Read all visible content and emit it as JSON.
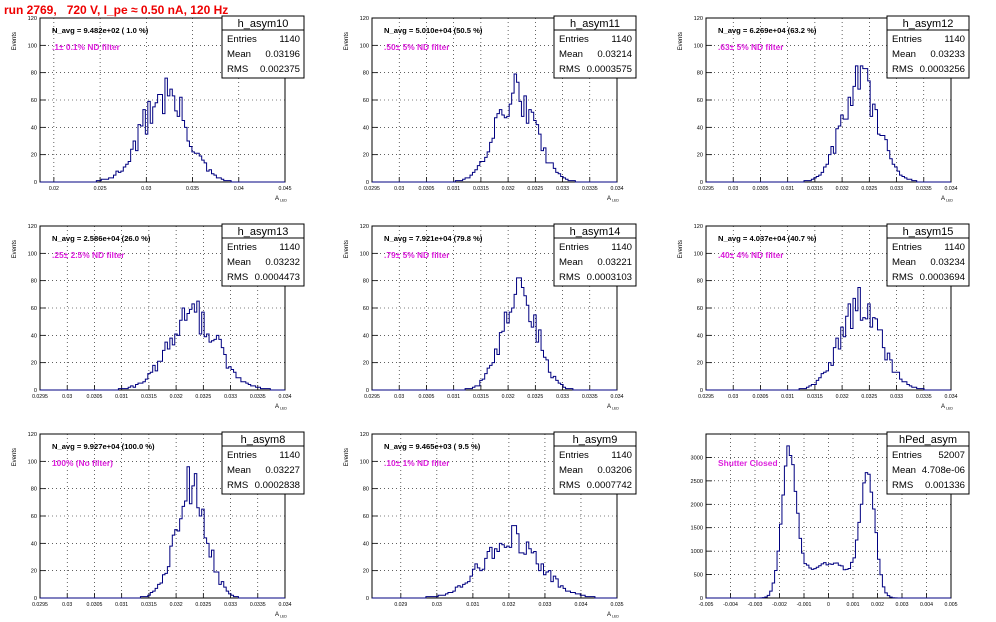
{
  "page": {
    "title": "run 2769,   720 V, I_pe ≈ 0.50 nA, 120 Hz"
  },
  "chart_data": [
    {
      "type": "bar",
      "hist_name": "h_asym10",
      "stats": {
        "entries": "1140",
        "mean": "0.03196",
        "rms": "0.002375"
      },
      "navg_label": "N_avg = 9.482e+02 ( 1.0 %)",
      "filter_label": ".1± 0.1% ND filter",
      "xlabel": "A_LED",
      "ylabel": "Events",
      "xlim": [
        0.0185,
        0.045
      ],
      "ylim": [
        0,
        120
      ],
      "xticks": [
        "0.02",
        "0.025",
        "0.03",
        "0.035",
        "0.04",
        "0.045"
      ],
      "yticks": [
        "0",
        "20",
        "40",
        "60",
        "80",
        "100",
        "120"
      ],
      "hist_mean": 0.03196,
      "hist_sigma": 0.002375,
      "hist_peak": 65,
      "hist_noise": 0.28
    },
    {
      "type": "bar",
      "hist_name": "h_asym11",
      "stats": {
        "entries": "1140",
        "mean": "0.03214",
        "rms": "0.0003575"
      },
      "navg_label": "N_avg = 5.010e+04 (50.5 %)",
      "filter_label": ".50± 5% ND filter",
      "xlabel": "A_LED",
      "ylabel": "Events",
      "xlim": [
        0.0295,
        0.034
      ],
      "ylim": [
        0,
        120
      ],
      "xticks": [
        "0.0295",
        "0.03",
        "0.0305",
        "0.031",
        "0.0315",
        "0.032",
        "0.0325",
        "0.033",
        "0.0335",
        "0.034"
      ],
      "yticks": [
        "0",
        "20",
        "40",
        "60",
        "80",
        "100",
        "120"
      ],
      "hist_mean": 0.03214,
      "hist_sigma": 0.0003575,
      "hist_peak": 65,
      "hist_noise": 0.22
    },
    {
      "type": "bar",
      "hist_name": "h_asym12",
      "stats": {
        "entries": "1140",
        "mean": "0.03233",
        "rms": "0.0003256"
      },
      "navg_label": "N_avg = 6.269e+04 (63.2 %)",
      "filter_label": ".63± 5% ND filter",
      "xlabel": "A_LED",
      "ylabel": "Events",
      "xlim": [
        0.0295,
        0.034
      ],
      "ylim": [
        0,
        120
      ],
      "xticks": [
        "0.0295",
        "0.03",
        "0.0305",
        "0.031",
        "0.0315",
        "0.032",
        "0.0325",
        "0.033",
        "0.0335",
        "0.034"
      ],
      "yticks": [
        "0",
        "20",
        "40",
        "60",
        "80",
        "100",
        "120"
      ],
      "hist_mean": 0.03233,
      "hist_sigma": 0.0003256,
      "hist_peak": 75,
      "hist_noise": 0.22
    },
    {
      "type": "bar",
      "hist_name": "h_asym13",
      "stats": {
        "entries": "1140",
        "mean": "0.03232",
        "rms": "0.0004473"
      },
      "navg_label": "N_avg = 2.586e+04 (26.0 %)",
      "filter_label": ".25± 2.5% ND filter",
      "xlabel": "A_LED",
      "ylabel": "Events",
      "xlim": [
        0.0295,
        0.034
      ],
      "ylim": [
        0,
        120
      ],
      "xticks": [
        "0.0295",
        "0.03",
        "0.0305",
        "0.031",
        "0.0315",
        "0.032",
        "0.0325",
        "0.033",
        "0.0335",
        "0.034"
      ],
      "yticks": [
        "0",
        "20",
        "40",
        "60",
        "80",
        "100",
        "120"
      ],
      "hist_mean": 0.03232,
      "hist_sigma": 0.0004473,
      "hist_peak": 55,
      "hist_noise": 0.22
    },
    {
      "type": "bar",
      "hist_name": "h_asym14",
      "stats": {
        "entries": "1140",
        "mean": "0.03221",
        "rms": "0.0003103"
      },
      "navg_label": "N_avg = 7.921e+04 (79.8 %)",
      "filter_label": ".79± 5% ND filter",
      "xlabel": "A_LED",
      "ylabel": "Events",
      "xlim": [
        0.0295,
        0.034
      ],
      "ylim": [
        0,
        120
      ],
      "xticks": [
        "0.0295",
        "0.03",
        "0.0305",
        "0.031",
        "0.0315",
        "0.032",
        "0.0325",
        "0.033",
        "0.0335",
        "0.034"
      ],
      "yticks": [
        "0",
        "20",
        "40",
        "60",
        "80",
        "100",
        "120"
      ],
      "hist_mean": 0.03221,
      "hist_sigma": 0.0003103,
      "hist_peak": 75,
      "hist_noise": 0.22
    },
    {
      "type": "bar",
      "hist_name": "h_asym15",
      "stats": {
        "entries": "1140",
        "mean": "0.03234",
        "rms": "0.0003694"
      },
      "navg_label": "N_avg = 4.037e+04 (40.7 %)",
      "filter_label": ".40± 4% ND filter",
      "xlabel": "A_LED",
      "ylabel": "Events",
      "xlim": [
        0.0295,
        0.034
      ],
      "ylim": [
        0,
        120
      ],
      "xticks": [
        "0.0295",
        "0.03",
        "0.0305",
        "0.031",
        "0.0315",
        "0.032",
        "0.0325",
        "0.033",
        "0.0335",
        "0.034"
      ],
      "yticks": [
        "0",
        "20",
        "40",
        "60",
        "80",
        "100",
        "120"
      ],
      "hist_mean": 0.03234,
      "hist_sigma": 0.0003694,
      "hist_peak": 62,
      "hist_noise": 0.22
    },
    {
      "type": "bar",
      "hist_name": "h_asym8",
      "stats": {
        "entries": "1140",
        "mean": "0.03227",
        "rms": "0.0002838"
      },
      "navg_label": "N_avg = 9.927e+04 (100.0 %)",
      "filter_label": "100% (No filter)",
      "xlabel": "A_LED",
      "ylabel": "Events",
      "xlim": [
        0.0295,
        0.034
      ],
      "ylim": [
        0,
        120
      ],
      "xticks": [
        "0.0295",
        "0.03",
        "0.0305",
        "0.031",
        "0.0315",
        "0.032",
        "0.0325",
        "0.033",
        "0.0335",
        "0.034"
      ],
      "yticks": [
        "0",
        "20",
        "40",
        "60",
        "80",
        "100",
        "120"
      ],
      "hist_mean": 0.03227,
      "hist_sigma": 0.0002838,
      "hist_peak": 80,
      "hist_noise": 0.25
    },
    {
      "type": "bar",
      "hist_name": "h_asym9",
      "stats": {
        "entries": "1140",
        "mean": "0.03206",
        "rms": "0.0007742"
      },
      "navg_label": "N_avg = 9.465e+03 ( 9.5 %)",
      "filter_label": ".10± 1% ND filter",
      "xlabel": "A_LED",
      "ylabel": "Events",
      "xlim": [
        0.0282,
        0.035
      ],
      "ylim": [
        0,
        120
      ],
      "xticks": [
        "0.028",
        "0.029",
        "0.03",
        "0.031",
        "0.032",
        "0.033",
        "0.034",
        "0.035"
      ],
      "yticks": [
        "0",
        "20",
        "40",
        "60",
        "80",
        "100",
        "120"
      ],
      "hist_mean": 0.03206,
      "hist_sigma": 0.0007742,
      "hist_peak": 45,
      "hist_noise": 0.25
    },
    {
      "type": "bar",
      "hist_name": "hPed_asym",
      "stats": {
        "entries": "52007",
        "mean": "4.708e-06",
        "rms": "0.001336"
      },
      "navg_label": "",
      "filter_label": "Shutter Closed",
      "xlabel": "",
      "ylabel": "",
      "xlim": [
        -0.005,
        0.005
      ],
      "ylim": [
        0,
        3500
      ],
      "xticks": [
        "-0.005",
        "-0.004",
        "-0.003",
        "-0.002",
        "-0.001",
        "0",
        "0.001",
        "0.002",
        "0.003",
        "0.004",
        "0.005"
      ],
      "yticks": [
        "0",
        "500",
        "1000",
        "1500",
        "2000",
        "2500",
        "3000"
      ],
      "profile": "ped",
      "ped_center": 0.0016,
      "ped_height": 3200,
      "ped_mid": 750,
      "hist_noise": 0.06
    }
  ]
}
